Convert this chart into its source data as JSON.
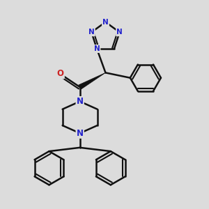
{
  "background_color": "#dcdcdc",
  "bond_color": "#111111",
  "N_color": "#2222cc",
  "O_color": "#cc2222",
  "line_width": 1.8,
  "figsize": [
    3.0,
    3.0
  ],
  "dpi": 100,
  "xlim": [
    0,
    10
  ],
  "ylim": [
    0,
    10
  ]
}
